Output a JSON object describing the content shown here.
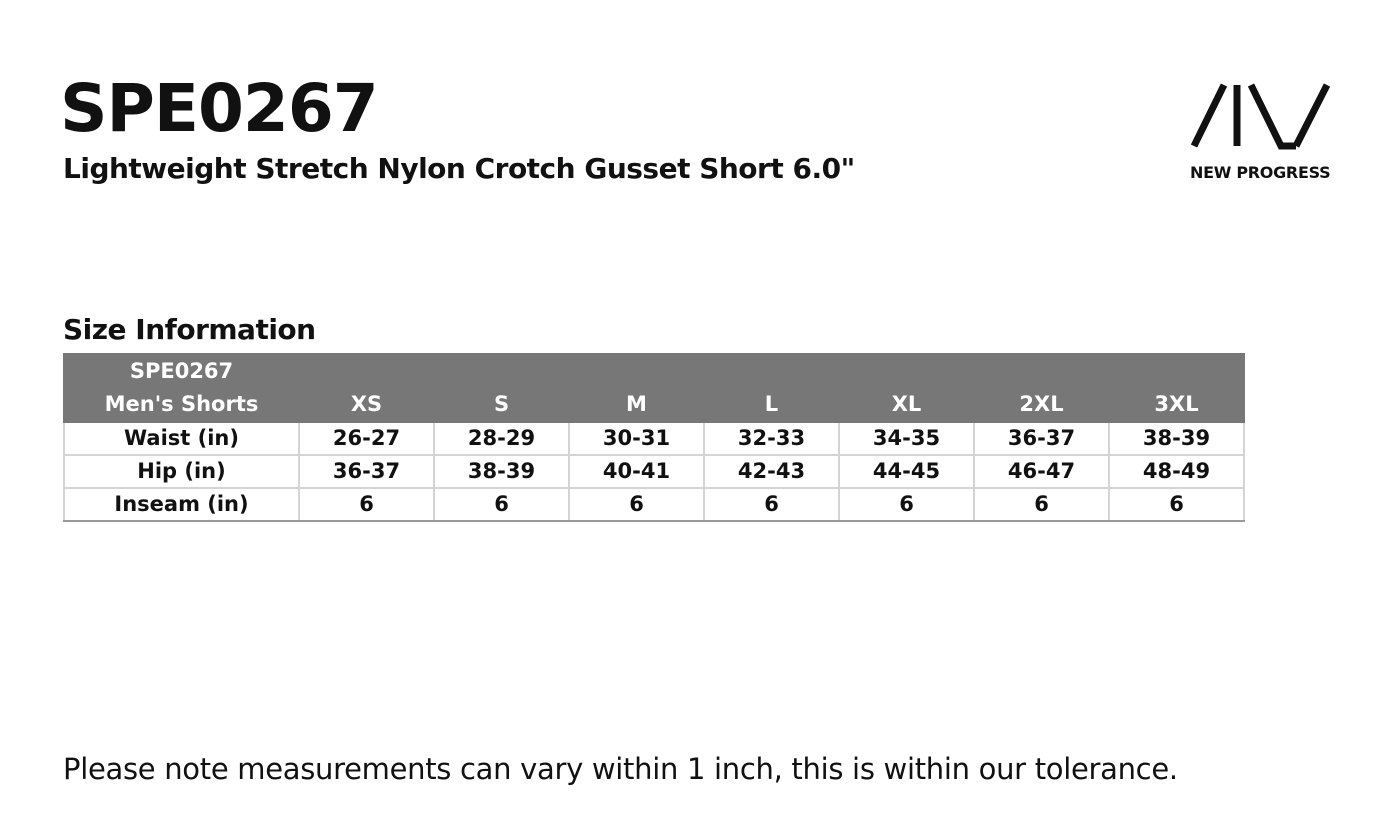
{
  "header": {
    "title": "SPE0267",
    "subtitle": "Lightweight Stretch Nylon Crotch Gusset Short 6.0\"",
    "brand": "NEW PROGRESS"
  },
  "section_title": "Size Information",
  "table": {
    "corner": [
      "SPE0267",
      "Men's Shorts"
    ],
    "columns": [
      "XS",
      "S",
      "M",
      "L",
      "XL",
      "2XL",
      "3XL"
    ],
    "rows": [
      [
        "Waist (in)",
        "26-27",
        "28-29",
        "30-31",
        "32-33",
        "34-35",
        "36-37",
        "38-39"
      ],
      [
        "Hip (in)",
        "36-37",
        "38-39",
        "40-41",
        "42-43",
        "44-45",
        "46-47",
        "48-49"
      ],
      [
        "Inseam (in)",
        "6",
        "6",
        "6",
        "6",
        "6",
        "6",
        "6"
      ]
    ]
  },
  "footnote": "Please note measurements can vary within 1 inch, this is within our tolerance."
}
